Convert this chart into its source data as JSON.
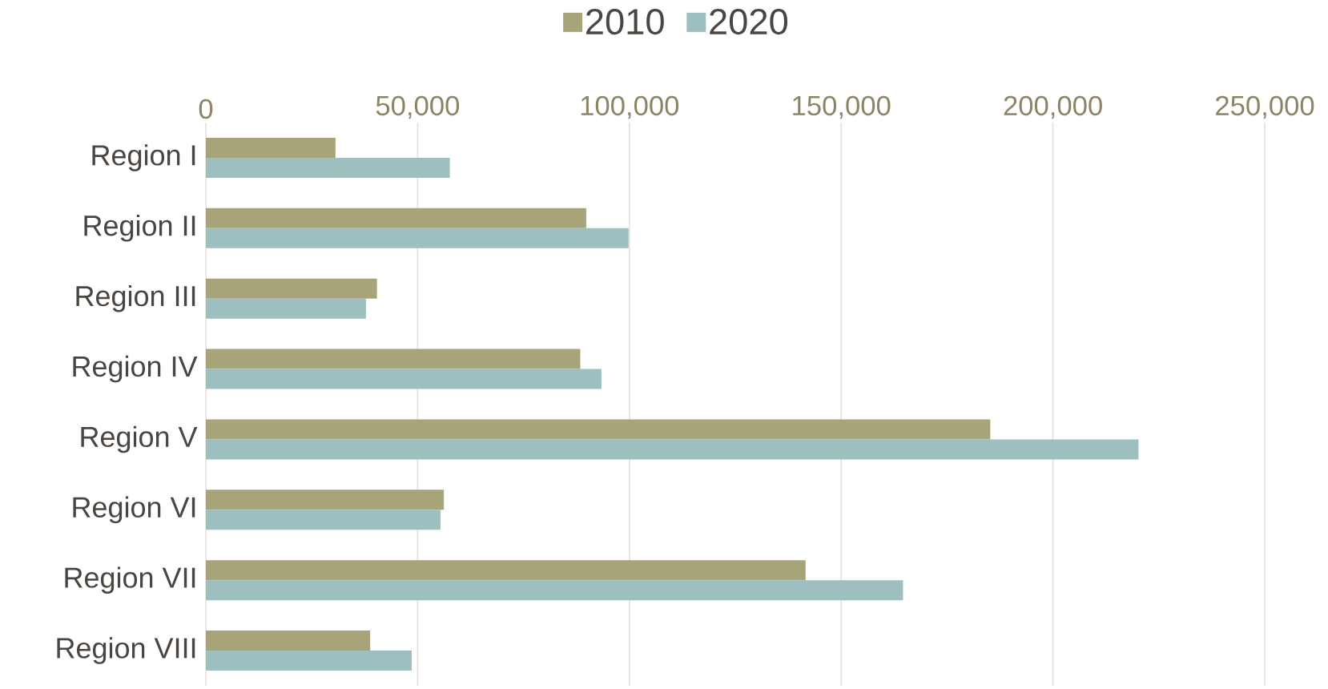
{
  "chart_data": {
    "type": "bar",
    "orientation": "horizontal",
    "categories": [
      "Region I",
      "Region II",
      "Region III",
      "Region IV",
      "Region V",
      "Region VI",
      "Region VII",
      "Region VIII"
    ],
    "series": [
      {
        "name": "2010",
        "color": "#a8a47a",
        "values": [
          30600,
          89800,
          40400,
          88400,
          185200,
          56200,
          141600,
          38800
        ]
      },
      {
        "name": "2020",
        "color": "#9dbfbf",
        "values": [
          57600,
          99800,
          37800,
          93400,
          220200,
          55400,
          164600,
          48600
        ]
      }
    ],
    "xlim": [
      0,
      250000
    ],
    "xticks": [
      {
        "value": 0,
        "label": "0"
      },
      {
        "value": 50000,
        "label": "50,000"
      },
      {
        "value": 100000,
        "label": "100,000"
      },
      {
        "value": 150000,
        "label": "150,000"
      },
      {
        "value": 200000,
        "label": "200,000"
      },
      {
        "value": 250000,
        "label": "250,000"
      }
    ],
    "grid": "x",
    "legend": "top"
  }
}
